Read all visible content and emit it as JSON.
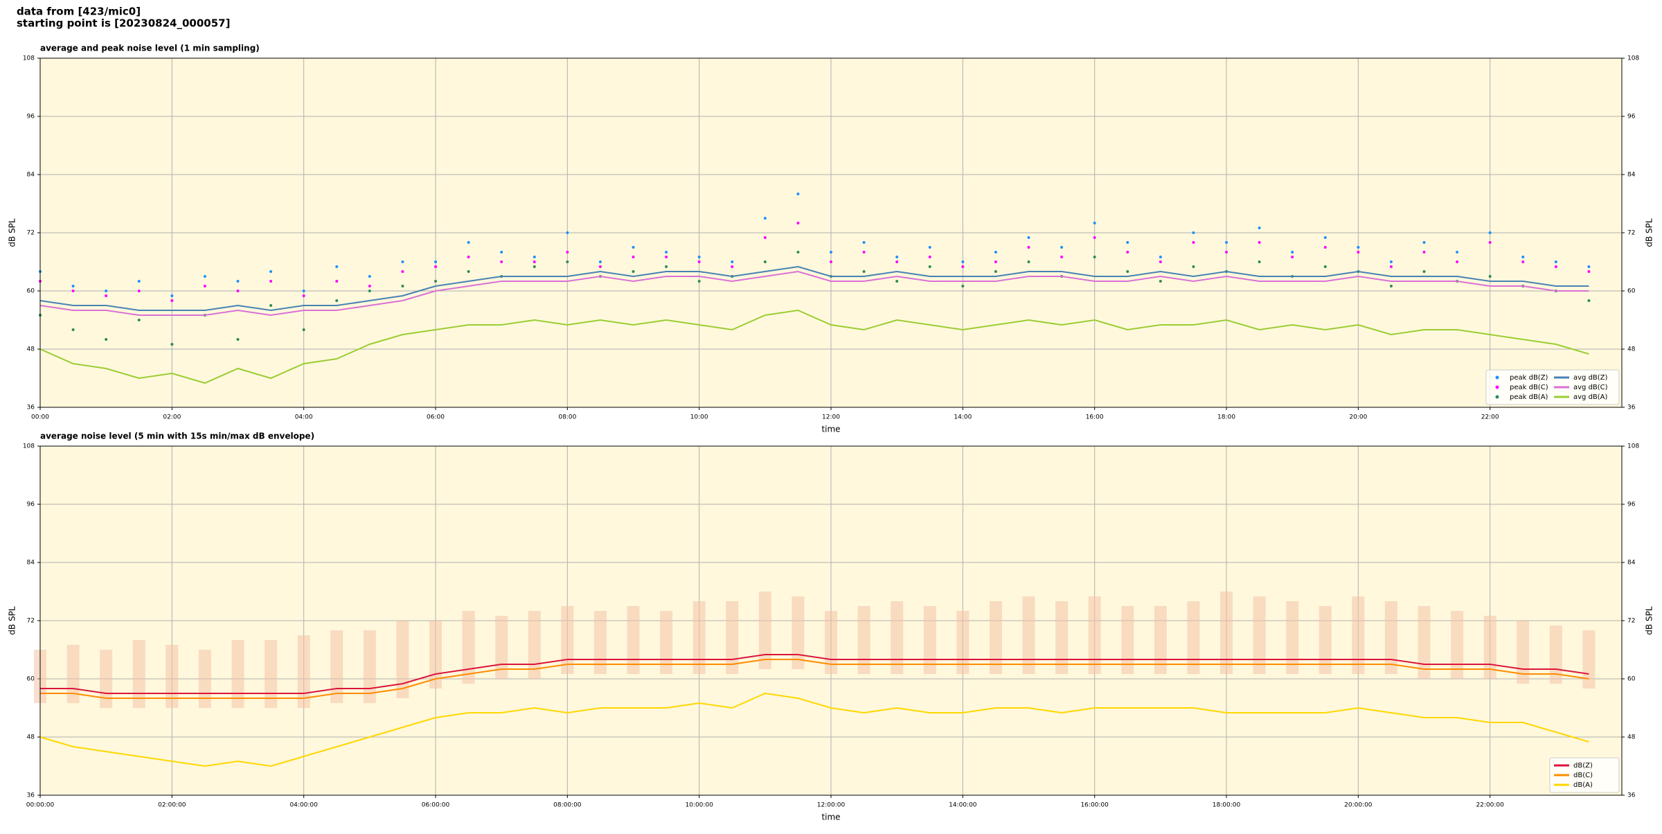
{
  "header": {
    "lines": [
      "data from [423/mic0]",
      "starting point is [20230824_000057]"
    ]
  },
  "chart_data": [
    {
      "type": "line",
      "title": "average and peak noise level (1 min sampling)",
      "x_label": "time",
      "y_label": "dB SPL",
      "background": "#fff8dc",
      "grid": true,
      "legend": "lower right",
      "legend_columns": 2,
      "xlim": [
        0,
        24
      ],
      "xticks": [
        {
          "value": 0,
          "label": "00:00"
        },
        {
          "value": 2,
          "label": "02:00"
        },
        {
          "value": 4,
          "label": "04:00"
        },
        {
          "value": 6,
          "label": "06:00"
        },
        {
          "value": 8,
          "label": "08:00"
        },
        {
          "value": 10,
          "label": "10:00"
        },
        {
          "value": 12,
          "label": "12:00"
        },
        {
          "value": 14,
          "label": "14:00"
        },
        {
          "value": 16,
          "label": "16:00"
        },
        {
          "value": 18,
          "label": "18:00"
        },
        {
          "value": 20,
          "label": "20:00"
        },
        {
          "value": 22,
          "label": "22:00"
        }
      ],
      "ylim": [
        36,
        108
      ],
      "yticks": [
        36,
        48,
        60,
        72,
        84,
        96,
        108
      ],
      "x": [
        0,
        0.5,
        1,
        1.5,
        2,
        2.5,
        3,
        3.5,
        4,
        4.5,
        5,
        5.5,
        6,
        6.5,
        7,
        7.5,
        8,
        8.5,
        9,
        9.5,
        10,
        10.5,
        11,
        11.5,
        12,
        12.5,
        13,
        13.5,
        14,
        14.5,
        15,
        15.5,
        16,
        16.5,
        17,
        17.5,
        18,
        18.5,
        19,
        19.5,
        20,
        20.5,
        21,
        21.5,
        22,
        22.5,
        23,
        23.5
      ],
      "series": [
        {
          "name": "peak dB(Z)",
          "type": "scatter",
          "color": "#1e90ff",
          "values": [
            64,
            61,
            60,
            62,
            59,
            63,
            62,
            64,
            60,
            65,
            63,
            66,
            66,
            70,
            68,
            67,
            72,
            66,
            69,
            68,
            67,
            66,
            75,
            80,
            68,
            70,
            67,
            69,
            66,
            68,
            71,
            69,
            74,
            70,
            67,
            72,
            70,
            73,
            68,
            71,
            69,
            66,
            70,
            68,
            72,
            67,
            66,
            65
          ]
        },
        {
          "name": "peak dB(C)",
          "type": "scatter",
          "color": "#ff00ff",
          "values": [
            62,
            60,
            59,
            60,
            58,
            61,
            60,
            62,
            59,
            62,
            61,
            64,
            65,
            67,
            66,
            66,
            68,
            65,
            67,
            67,
            66,
            65,
            71,
            74,
            66,
            68,
            66,
            67,
            65,
            66,
            69,
            67,
            71,
            68,
            66,
            70,
            68,
            70,
            67,
            69,
            68,
            65,
            68,
            66,
            70,
            66,
            65,
            64
          ]
        },
        {
          "name": "peak dB(A)",
          "type": "scatter",
          "color": "#2e8b57",
          "values": [
            55,
            52,
            50,
            54,
            49,
            55,
            50,
            57,
            52,
            58,
            60,
            61,
            62,
            64,
            63,
            65,
            66,
            63,
            64,
            65,
            62,
            63,
            66,
            68,
            63,
            64,
            62,
            65,
            61,
            64,
            66,
            63,
            67,
            64,
            62,
            65,
            64,
            66,
            63,
            65,
            64,
            61,
            64,
            62,
            63,
            61,
            60,
            58
          ]
        },
        {
          "name": "avg dB(Z)",
          "type": "line",
          "color": "#4682b4",
          "values": [
            58,
            57,
            57,
            56,
            56,
            56,
            57,
            56,
            57,
            57,
            58,
            59,
            61,
            62,
            63,
            63,
            63,
            64,
            63,
            64,
            64,
            63,
            64,
            65,
            63,
            63,
            64,
            63,
            63,
            63,
            64,
            64,
            63,
            63,
            64,
            63,
            64,
            63,
            63,
            63,
            64,
            63,
            63,
            63,
            62,
            62,
            61,
            61
          ]
        },
        {
          "name": "avg dB(C)",
          "type": "line",
          "color": "#da70d6",
          "values": [
            57,
            56,
            56,
            55,
            55,
            55,
            56,
            55,
            56,
            56,
            57,
            58,
            60,
            61,
            62,
            62,
            62,
            63,
            62,
            63,
            63,
            62,
            63,
            64,
            62,
            62,
            63,
            62,
            62,
            62,
            63,
            63,
            62,
            62,
            63,
            62,
            63,
            62,
            62,
            62,
            63,
            62,
            62,
            62,
            61,
            61,
            60,
            60
          ]
        },
        {
          "name": "avg dB(A)",
          "type": "line",
          "color": "#9acd32",
          "values": [
            48,
            45,
            44,
            42,
            43,
            41,
            44,
            42,
            45,
            46,
            49,
            51,
            52,
            53,
            53,
            54,
            53,
            54,
            53,
            54,
            53,
            52,
            55,
            56,
            53,
            52,
            54,
            53,
            52,
            53,
            54,
            53,
            54,
            52,
            53,
            53,
            54,
            52,
            53,
            52,
            53,
            51,
            52,
            52,
            51,
            50,
            49,
            47
          ]
        }
      ]
    },
    {
      "type": "line",
      "title": "average noise level (5 min with 15s min/max dB envelope)",
      "x_label": "time",
      "y_label": "dB SPL",
      "background": "#fff8dc",
      "grid": true,
      "legend": "lower right",
      "legend_columns": 1,
      "xlim": [
        0,
        24
      ],
      "xticks": [
        {
          "value": 0,
          "label": "00:00:00"
        },
        {
          "value": 2,
          "label": "02:00:00"
        },
        {
          "value": 4,
          "label": "04:00:00"
        },
        {
          "value": 6,
          "label": "06:00:00"
        },
        {
          "value": 8,
          "label": "08:00:00"
        },
        {
          "value": 10,
          "label": "10:00:00"
        },
        {
          "value": 12,
          "label": "12:00:00"
        },
        {
          "value": 14,
          "label": "14:00:00"
        },
        {
          "value": 16,
          "label": "16:00:00"
        },
        {
          "value": 18,
          "label": "18:00:00"
        },
        {
          "value": 20,
          "label": "20:00:00"
        },
        {
          "value": 22,
          "label": "22:00:00"
        }
      ],
      "ylim": [
        36,
        108
      ],
      "yticks": [
        36,
        48,
        60,
        72,
        84,
        96,
        108
      ],
      "x": [
        0,
        0.5,
        1,
        1.5,
        2,
        2.5,
        3,
        3.5,
        4,
        4.5,
        5,
        5.5,
        6,
        6.5,
        7,
        7.5,
        8,
        8.5,
        9,
        9.5,
        10,
        10.5,
        11,
        11.5,
        12,
        12.5,
        13,
        13.5,
        14,
        14.5,
        15,
        15.5,
        16,
        16.5,
        17,
        17.5,
        18,
        18.5,
        19,
        19.5,
        20,
        20.5,
        21,
        21.5,
        22,
        22.5,
        23,
        23.5
      ],
      "envelope": {
        "color": "#f4c2a8",
        "upper": [
          66,
          67,
          66,
          68,
          67,
          66,
          68,
          68,
          69,
          70,
          70,
          72,
          72,
          74,
          73,
          74,
          75,
          74,
          75,
          74,
          76,
          76,
          78,
          77,
          74,
          75,
          76,
          75,
          74,
          76,
          77,
          76,
          77,
          75,
          75,
          76,
          78,
          77,
          76,
          75,
          77,
          76,
          75,
          74,
          73,
          72,
          71,
          70
        ],
        "lower": [
          55,
          55,
          54,
          54,
          54,
          54,
          54,
          54,
          54,
          55,
          55,
          56,
          58,
          59,
          60,
          60,
          61,
          61,
          61,
          61,
          61,
          61,
          62,
          62,
          61,
          61,
          61,
          61,
          61,
          61,
          61,
          61,
          61,
          61,
          61,
          61,
          61,
          61,
          61,
          61,
          61,
          61,
          60,
          60,
          60,
          59,
          59,
          58
        ]
      },
      "series": [
        {
          "name": "dB(Z)",
          "type": "line",
          "color": "#dc143c",
          "values": [
            58,
            58,
            57,
            57,
            57,
            57,
            57,
            57,
            57,
            58,
            58,
            59,
            61,
            62,
            63,
            63,
            64,
            64,
            64,
            64,
            64,
            64,
            65,
            65,
            64,
            64,
            64,
            64,
            64,
            64,
            64,
            64,
            64,
            64,
            64,
            64,
            64,
            64,
            64,
            64,
            64,
            64,
            63,
            63,
            63,
            62,
            62,
            61
          ]
        },
        {
          "name": "dB(C)",
          "type": "line",
          "color": "#ff8c00",
          "values": [
            57,
            57,
            56,
            56,
            56,
            56,
            56,
            56,
            56,
            57,
            57,
            58,
            60,
            61,
            62,
            62,
            63,
            63,
            63,
            63,
            63,
            63,
            64,
            64,
            63,
            63,
            63,
            63,
            63,
            63,
            63,
            63,
            63,
            63,
            63,
            63,
            63,
            63,
            63,
            63,
            63,
            63,
            62,
            62,
            62,
            61,
            61,
            60
          ]
        },
        {
          "name": "dB(A)",
          "type": "line",
          "color": "#ffd700",
          "values": [
            48,
            46,
            45,
            44,
            43,
            42,
            43,
            42,
            44,
            46,
            48,
            50,
            52,
            53,
            53,
            54,
            53,
            54,
            54,
            54,
            55,
            54,
            57,
            56,
            54,
            53,
            54,
            53,
            53,
            54,
            54,
            53,
            54,
            54,
            54,
            54,
            53,
            53,
            53,
            53,
            54,
            53,
            52,
            52,
            51,
            51,
            49,
            47
          ]
        }
      ]
    }
  ]
}
